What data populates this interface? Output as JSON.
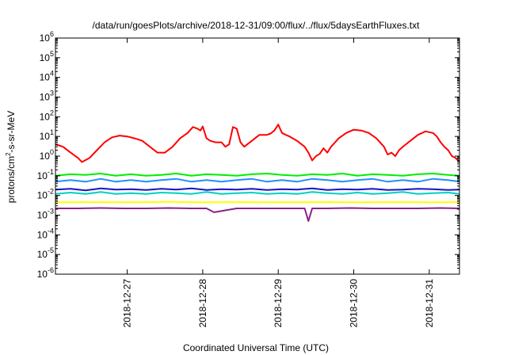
{
  "chart_data": {
    "type": "line",
    "title": "/data/run/goesPlots/archive/2018-12-31/09:00/flux/../flux/5daysEarthFluxes.txt",
    "xlabel": "Coordinated Universal Time (UTC)",
    "ylabel": {
      "base": "protons/cm",
      "sup": "2",
      "rest": "-s-sr-MeV"
    },
    "yscale": "log",
    "ylim": [
      1e-06,
      1000000.0
    ],
    "xlim_days": [
      0,
      5.35
    ],
    "x_ticks": [
      {
        "label": "2018-12-27",
        "day": 0.95
      },
      {
        "label": "2018-12-28",
        "day": 1.95
      },
      {
        "label": "2018-12-29",
        "day": 2.95
      },
      {
        "label": "2018-12-30",
        "day": 3.95
      },
      {
        "label": "2018-12-31",
        "day": 4.95
      }
    ],
    "y_ticks": [
      {
        "base": "10",
        "exp": "-6",
        "value": -6
      },
      {
        "base": "10",
        "exp": "-5",
        "value": -5
      },
      {
        "base": "10",
        "exp": "-4",
        "value": -4
      },
      {
        "base": "10",
        "exp": "-3",
        "value": -3
      },
      {
        "base": "10",
        "exp": "-2",
        "value": -2
      },
      {
        "base": "10",
        "exp": "-1",
        "value": -1
      },
      {
        "base": "10",
        "exp": "0",
        "value": 0
      },
      {
        "base": "10",
        "exp": "1",
        "value": 1
      },
      {
        "base": "10",
        "exp": "2",
        "value": 2
      },
      {
        "base": "10",
        "exp": "3",
        "value": 3
      },
      {
        "base": "10",
        "exp": "4",
        "value": 4
      },
      {
        "base": "10",
        "exp": "5",
        "value": 5
      },
      {
        "base": "10",
        "exp": "6",
        "value": 6
      }
    ],
    "grid": false,
    "legend": "none",
    "series": [
      {
        "color": "#ff0000",
        "width": 2,
        "x": [
          0,
          0.1,
          0.2,
          0.3,
          0.35,
          0.45,
          0.55,
          0.65,
          0.75,
          0.85,
          0.95,
          1.05,
          1.15,
          1.25,
          1.35,
          1.45,
          1.55,
          1.65,
          1.75,
          1.82,
          1.88,
          1.92,
          1.95,
          2.0,
          2.05,
          2.12,
          2.2,
          2.25,
          2.3,
          2.35,
          2.4,
          2.45,
          2.5,
          2.6,
          2.7,
          2.8,
          2.85,
          2.9,
          2.95,
          3.0,
          3.05,
          3.1,
          3.2,
          3.3,
          3.35,
          3.4,
          3.45,
          3.5,
          3.55,
          3.6,
          3.65,
          3.75,
          3.85,
          3.95,
          4.05,
          4.15,
          4.25,
          4.35,
          4.4,
          4.45,
          4.5,
          4.55,
          4.6,
          4.7,
          4.8,
          4.9,
          5.0,
          5.05,
          5.1,
          5.15,
          5.2,
          5.25,
          5.3,
          5.35
        ],
        "y": [
          4,
          3,
          1.5,
          0.8,
          0.5,
          0.8,
          2,
          5,
          9,
          11,
          10,
          8,
          6,
          3,
          1.5,
          1.5,
          3,
          8,
          15,
          30,
          25,
          20,
          32,
          8,
          6,
          5,
          5,
          3,
          4,
          30,
          25,
          5,
          3,
          6,
          12,
          12,
          14,
          20,
          40,
          15,
          12,
          10,
          6,
          3,
          1.5,
          0.6,
          1,
          1.3,
          2.5,
          1.5,
          3,
          8,
          15,
          22,
          20,
          15,
          8,
          3,
          1.2,
          1.5,
          1,
          2,
          3,
          6,
          12,
          18,
          15,
          10,
          5,
          3,
          2,
          1,
          0.8,
          0.5
        ]
      },
      {
        "color": "#00ee00",
        "width": 2,
        "x": [
          0,
          0.2,
          0.4,
          0.6,
          0.8,
          1.0,
          1.2,
          1.4,
          1.6,
          1.8,
          2.0,
          2.2,
          2.4,
          2.6,
          2.8,
          3.0,
          3.2,
          3.4,
          3.6,
          3.8,
          4.0,
          4.2,
          4.4,
          4.6,
          4.8,
          5.0,
          5.2,
          5.35
        ],
        "y": [
          0.1,
          0.12,
          0.11,
          0.13,
          0.1,
          0.12,
          0.1,
          0.11,
          0.13,
          0.1,
          0.12,
          0.11,
          0.1,
          0.12,
          0.13,
          0.11,
          0.1,
          0.12,
          0.11,
          0.13,
          0.1,
          0.12,
          0.11,
          0.1,
          0.12,
          0.13,
          0.11,
          0.1
        ]
      },
      {
        "color": "#1e90ff",
        "width": 2,
        "x": [
          0,
          0.2,
          0.4,
          0.6,
          0.8,
          1.0,
          1.2,
          1.4,
          1.6,
          1.8,
          2.0,
          2.2,
          2.4,
          2.6,
          2.8,
          3.0,
          3.2,
          3.4,
          3.6,
          3.8,
          4.0,
          4.2,
          4.4,
          4.6,
          4.8,
          5.0,
          5.2,
          5.35
        ],
        "y": [
          0.05,
          0.06,
          0.05,
          0.07,
          0.05,
          0.06,
          0.05,
          0.06,
          0.07,
          0.05,
          0.06,
          0.05,
          0.06,
          0.07,
          0.05,
          0.06,
          0.05,
          0.07,
          0.06,
          0.05,
          0.06,
          0.07,
          0.05,
          0.06,
          0.05,
          0.07,
          0.06,
          0.05
        ]
      },
      {
        "color": "#00d0c0",
        "width": 2,
        "x": [
          0,
          0.2,
          0.4,
          0.6,
          0.8,
          1.0,
          1.2,
          1.4,
          1.6,
          1.8,
          2.0,
          2.2,
          2.4,
          2.6,
          2.8,
          3.0,
          3.2,
          3.4,
          3.6,
          3.8,
          4.0,
          4.2,
          4.4,
          4.6,
          4.8,
          5.0,
          5.2,
          5.35
        ],
        "y": [
          0.012,
          0.014,
          0.012,
          0.015,
          0.012,
          0.013,
          0.012,
          0.014,
          0.013,
          0.012,
          0.015,
          0.012,
          0.013,
          0.014,
          0.012,
          0.013,
          0.012,
          0.015,
          0.013,
          0.012,
          0.014,
          0.012,
          0.013,
          0.015,
          0.012,
          0.013,
          0.014,
          0.012
        ]
      },
      {
        "color": "#1515c0",
        "width": 2,
        "x": [
          0,
          0.2,
          0.4,
          0.6,
          0.8,
          1.0,
          1.2,
          1.4,
          1.6,
          1.8,
          2.0,
          2.2,
          2.4,
          2.6,
          2.8,
          3.0,
          3.2,
          3.4,
          3.6,
          3.8,
          4.0,
          4.2,
          4.4,
          4.6,
          4.8,
          5.0,
          5.2,
          5.35
        ],
        "y": [
          0.02,
          0.022,
          0.018,
          0.023,
          0.02,
          0.021,
          0.019,
          0.022,
          0.02,
          0.023,
          0.019,
          0.021,
          0.02,
          0.022,
          0.019,
          0.021,
          0.02,
          0.023,
          0.019,
          0.021,
          0.02,
          0.022,
          0.019,
          0.02,
          0.022,
          0.021,
          0.019,
          0.02
        ]
      },
      {
        "color": "#ffff00",
        "width": 2,
        "x": [
          0,
          0.5,
          1.0,
          1.5,
          2.0,
          2.5,
          3.0,
          3.5,
          4.0,
          4.5,
          5.0,
          5.35
        ],
        "y": [
          0.0045,
          0.0046,
          0.0045,
          0.0047,
          0.0045,
          0.0046,
          0.0045,
          0.0046,
          0.0045,
          0.0046,
          0.0045,
          0.0046
        ]
      },
      {
        "color": "#882288",
        "width": 2,
        "x": [
          0,
          0.3,
          0.6,
          0.9,
          1.2,
          1.5,
          1.8,
          2.0,
          2.1,
          2.4,
          2.7,
          3.0,
          3.3,
          3.35,
          3.4,
          3.6,
          3.9,
          4.2,
          4.5,
          4.8,
          5.1,
          5.35
        ],
        "y": [
          0.0022,
          0.0022,
          0.0023,
          0.0022,
          0.0022,
          0.0023,
          0.0022,
          0.0022,
          0.0014,
          0.0022,
          0.0022,
          0.0022,
          0.0022,
          0.0005,
          0.0022,
          0.0022,
          0.0023,
          0.0022,
          0.0022,
          0.0022,
          0.0023,
          0.0022
        ]
      }
    ]
  }
}
